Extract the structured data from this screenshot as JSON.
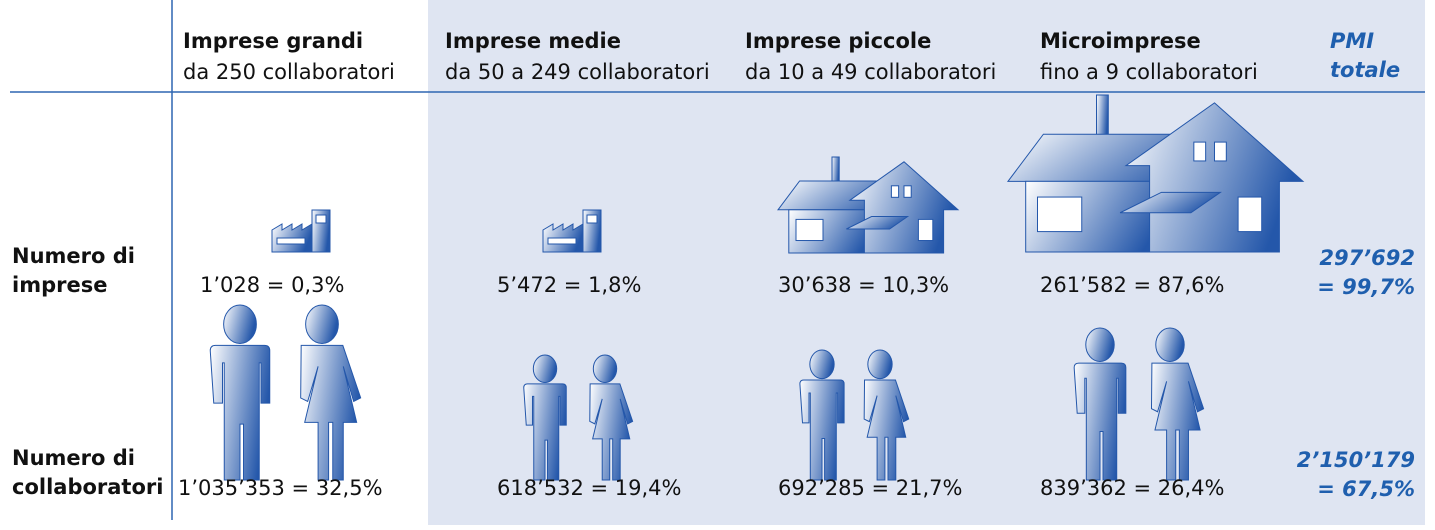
{
  "columns": [
    {
      "title": "Imprese grandi",
      "subtitle": "da 250 collaboratori"
    },
    {
      "title": "Imprese medie",
      "subtitle": "da 50 a 249 collaboratori"
    },
    {
      "title": "Imprese piccole",
      "subtitle": "da 10 a 49 collaboratori"
    },
    {
      "title": "Microimprese",
      "subtitle": "fino a 9 collaboratori"
    }
  ],
  "total_header": "PMI totale",
  "rows": [
    {
      "label": "Numero di imprese",
      "cells": [
        "1’028 = 0,3%",
        "5’472 = 1,8%",
        "30’638 = 10,3%",
        "261’582 = 87,6%"
      ],
      "total": "297’692 = 99,7%"
    },
    {
      "label": "Numero di collaboratori",
      "cells": [
        "1’035’353 = 32,5%",
        "618’532 = 19,4%",
        "692’285 = 21,7%",
        "839’362 = 26,4%"
      ],
      "total": "2’150’179 = 67,5%"
    }
  ]
}
